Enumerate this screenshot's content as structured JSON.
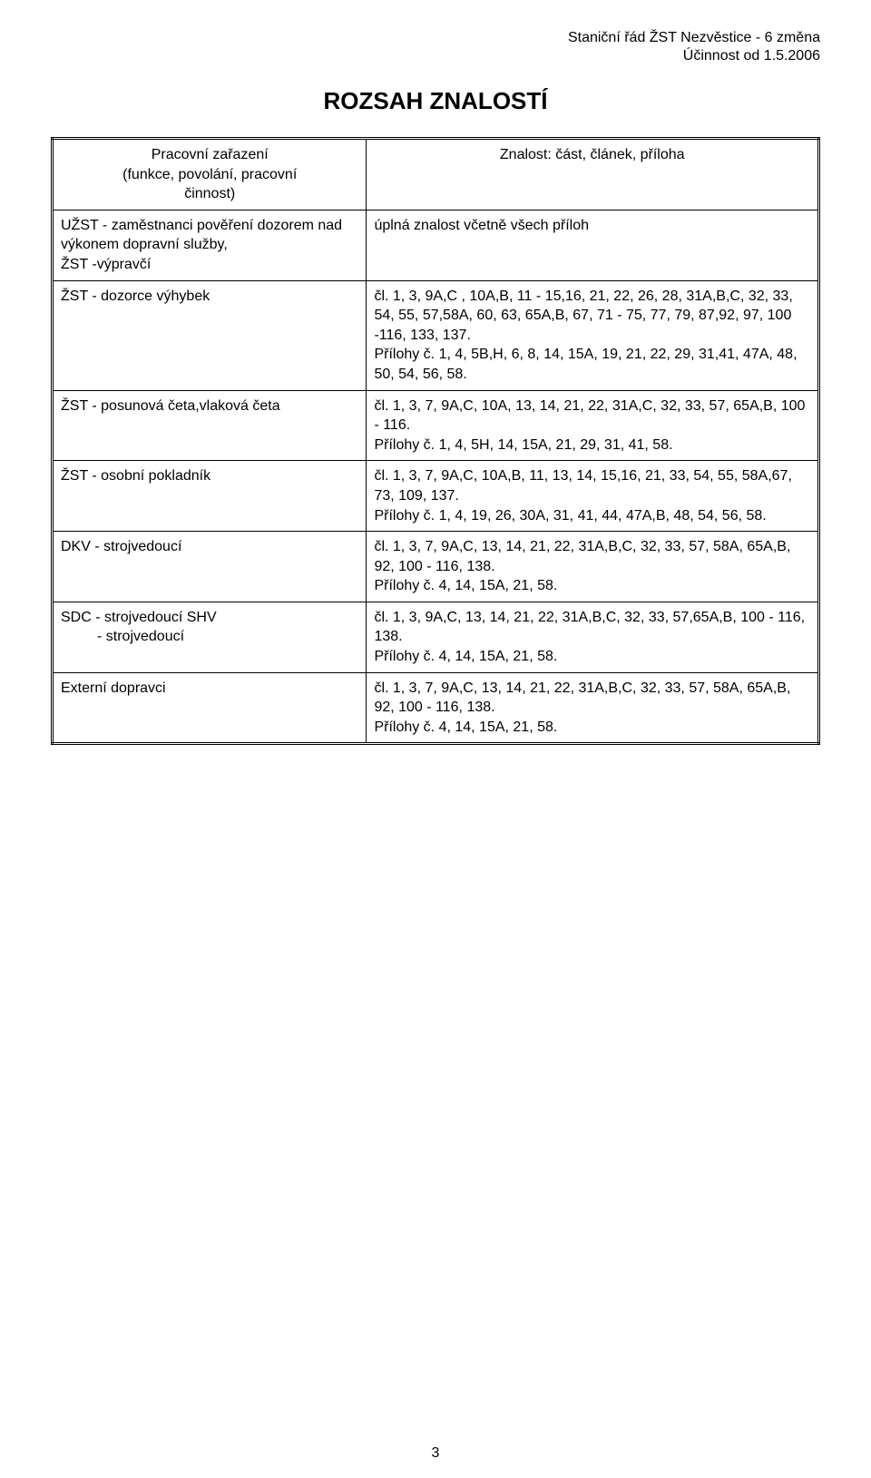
{
  "colors": {
    "text": "#000000",
    "background": "#ffffff",
    "border": "#000000"
  },
  "fonts": {
    "body_pt": 12,
    "title_pt": 18,
    "family": "Arial"
  },
  "header": {
    "line1": "Staniční řád ŽST Nezvěstice - 6 změna",
    "line2": "Účinnost od 1.5.2006"
  },
  "title": "ROZSAH ZNALOSTÍ",
  "table": {
    "type": "table",
    "col_widths_pct": [
      41,
      59
    ],
    "border_color": "#000000",
    "head": {
      "left_line1": "Pracovní zařazení",
      "left_line2": "(funkce, povolání, pracovní",
      "left_line3": "činnost)",
      "right": "Znalost: část, článek, příloha"
    },
    "rows": [
      {
        "left": "UŽST - zaměstnanci pověření dozorem nad výkonem dopravní služby,\nŽST -výpravčí",
        "right": "úplná znalost včetně všech příloh"
      },
      {
        "left": "ŽST - dozorce výhybek",
        "right": "čl. 1, 3, 9A,C , 10A,B, 11 - 15,16, 21, 22, 26, 28, 31A,B,C, 32, 33, 54, 55, 57,58A, 60, 63, 65A,B, 67, 71 - 75, 77, 79, 87,92, 97, 100 -116, 133, 137.\nPřílohy č. 1, 4, 5B,H, 6, 8, 14, 15A, 19, 21, 22, 29, 31,41, 47A, 48, 50, 54, 56, 58."
      },
      {
        "left": "ŽST - posunová četa,vlaková četa",
        "right": "čl. 1, 3, 7, 9A,C, 10A, 13, 14, 21, 22, 31A,C, 32, 33, 57, 65A,B, 100 - 116.\nPřílohy č. 1, 4, 5H, 14, 15A, 21, 29, 31, 41,  58."
      },
      {
        "left": "ŽST - osobní pokladník",
        "right": "čl. 1, 3, 7, 9A,C, 10A,B, 11, 13, 14, 15,16, 21, 33, 54, 55, 58A,67, 73, 109, 137.\nPřílohy č. 1, 4, 19, 26, 30A, 31, 41, 44, 47A,B, 48, 54, 56, 58."
      },
      {
        "left": "DKV - strojvedoucí",
        "right": "čl. 1, 3, 7, 9A,C, 13, 14, 21, 22, 31A,B,C, 32, 33, 57, 58A, 65A,B, 92, 100 - 116, 138.\nPřílohy č. 4, 14, 15A, 21, 58."
      },
      {
        "left": "SDC - strojvedoucí SHV\n         - strojvedoucí",
        "right": "čl. 1, 3, 9A,C, 13, 14, 21, 22, 31A,B,C, 32, 33, 57,65A,B, 100 - 116, 138.\nPřílohy č. 4, 14, 15A, 21, 58."
      },
      {
        "left": "Externí dopravci",
        "right": "čl. 1, 3, 7, 9A,C, 13, 14, 21, 22, 31A,B,C, 32, 33, 57, 58A, 65A,B, 92, 100 - 116, 138.\nPřílohy č. 4, 14, 15A, 21, 58."
      }
    ]
  },
  "page_number": "3"
}
